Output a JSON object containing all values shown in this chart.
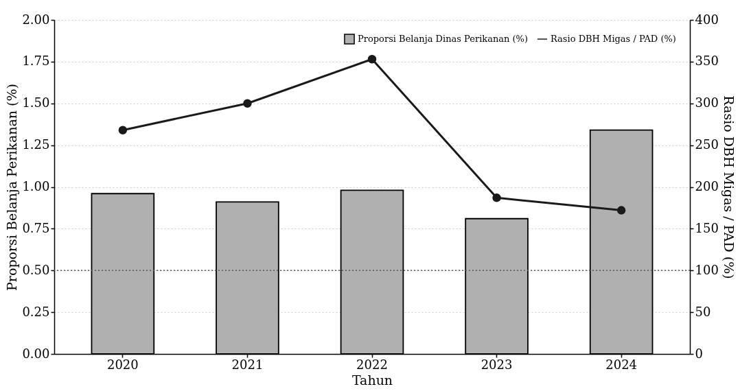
{
  "chart_data": {
    "type": "bar",
    "categories": [
      "2020",
      "2021",
      "2022",
      "2023",
      "2024"
    ],
    "xlabel": "Tahun",
    "ylabel": "Proporsi Belanja Perikanan (%)",
    "y2label": "Rasio DBH Migas / PAD (%)",
    "ylim": [
      0,
      2
    ],
    "yticks": [
      {
        "value": 0,
        "label": "0.00"
      },
      {
        "value": 0.25,
        "label": "0.25"
      },
      {
        "value": 0.5,
        "label": "0.50"
      },
      {
        "value": 0.75,
        "label": "0.75"
      },
      {
        "value": 1,
        "label": "1.00"
      },
      {
        "value": 1.25,
        "label": "1.25"
      },
      {
        "value": 1.5,
        "label": "1.50"
      },
      {
        "value": 1.75,
        "label": "1.75"
      },
      {
        "value": 2,
        "label": "2.00"
      }
    ],
    "y2lim": [
      0,
      400
    ],
    "y2ticks": [
      0,
      50,
      100,
      150,
      200,
      250,
      300,
      350,
      400
    ],
    "series": [
      {
        "name": "Proporsi Belanja Dinas Perikanan (%)",
        "color": "#b0b0b0",
        "values": [
          0.96,
          0.91,
          0.98,
          0.81,
          1.34
        ]
      },
      {
        "name": "Rasio DBH Migas / PAD (%)",
        "type": "line",
        "axis": "y2",
        "color": "#1a1a1a",
        "values": [
          268,
          300,
          353,
          187,
          172
        ]
      }
    ],
    "ref_lines": [
      {
        "axis": "y",
        "value": 0.5,
        "color": "#555555",
        "line_style": "dotted"
      }
    ],
    "grid": "y",
    "legend": "top right",
    "marker": "circle",
    "line_style": "solid"
  }
}
